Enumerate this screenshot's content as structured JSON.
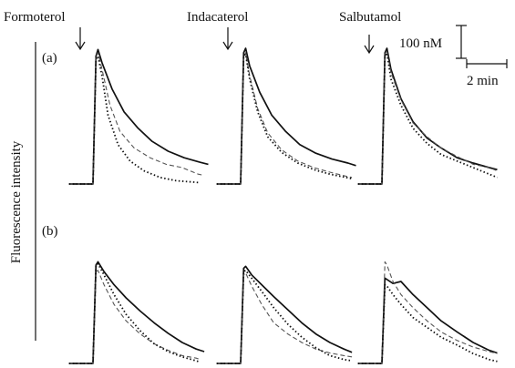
{
  "chart_data": {
    "type": "line",
    "title": "",
    "ylabel": "Fluorescence intensity",
    "columns": [
      "Formoterol",
      "Indacaterol",
      "Salbutamol"
    ],
    "rows": [
      "(a)",
      "(b)"
    ],
    "scale_bar": {
      "y_label": "100 nM",
      "y_value_nM": 100,
      "x_label": "2 min",
      "x_value_min": 2
    },
    "x_unit": "min",
    "y_unit": "nM",
    "x_range": [
      0,
      7
    ],
    "y_range": [
      0,
      240
    ],
    "line_styles": [
      {
        "style": "solid",
        "color": "#111111"
      },
      {
        "style": "dashed",
        "color": "#555555"
      },
      {
        "style": "dotted",
        "color": "#111111"
      }
    ],
    "panels": [
      {
        "row": "(a)",
        "column": "Formoterol",
        "series": [
          {
            "style": "solid",
            "x": [
              0,
              0.65,
              0.8,
              0.9,
              1.1,
              1.6,
              2.2,
              2.9,
              3.6,
              4.4,
              5.2,
              6.0,
              6.4
            ],
            "y": [
              0,
              0,
              195,
              205,
              185,
              145,
              110,
              85,
              65,
              50,
              40,
              33,
              30
            ]
          },
          {
            "style": "dashed",
            "x": [
              0,
              0.65,
              0.8,
              0.9,
              1.1,
              1.5,
              2.0,
              2.7,
              3.5,
              4.3,
              5.1,
              5.9,
              6.2
            ],
            "y": [
              0,
              0,
              195,
              200,
              175,
              120,
              80,
              55,
              40,
              30,
              25,
              15,
              13
            ]
          },
          {
            "style": "dotted",
            "x": [
              0,
              0.65,
              0.8,
              0.9,
              1.1,
              1.4,
              1.9,
              2.5,
              3.2,
              4.0,
              4.8,
              5.6,
              6.0
            ],
            "y": [
              0,
              0,
              190,
              195,
              165,
              105,
              60,
              35,
              20,
              10,
              5,
              3,
              2
            ]
          }
        ]
      },
      {
        "row": "(a)",
        "column": "Indacaterol",
        "series": [
          {
            "style": "solid",
            "x": [
              0,
              0.65,
              0.8,
              0.9,
              1.1,
              1.6,
              2.2,
              2.9,
              3.6,
              4.4,
              5.2,
              6.0,
              6.4
            ],
            "y": [
              0,
              0,
              200,
              207,
              180,
              140,
              105,
              80,
              60,
              47,
              38,
              32,
              28
            ]
          },
          {
            "style": "dashed",
            "x": [
              0,
              0.65,
              0.8,
              0.9,
              1.1,
              1.5,
              2.0,
              2.7,
              3.5,
              4.3,
              5.1,
              5.9,
              6.2
            ],
            "y": [
              0,
              0,
              195,
              200,
              165,
              115,
              78,
              52,
              35,
              25,
              18,
              12,
              10
            ]
          },
          {
            "style": "dotted",
            "x": [
              0,
              0.65,
              0.8,
              0.9,
              1.1,
              1.5,
              2.0,
              2.7,
              3.5,
              4.3,
              5.1,
              5.9,
              6.2
            ],
            "y": [
              0,
              0,
              195,
              198,
              160,
              110,
              72,
              48,
              32,
              22,
              15,
              10,
              8
            ]
          }
        ]
      },
      {
        "row": "(a)",
        "column": "Salbutamol",
        "series": [
          {
            "style": "solid",
            "x": [
              0,
              0.65,
              0.8,
              0.9,
              1.1,
              1.6,
              2.2,
              2.9,
              3.6,
              4.4,
              5.2,
              6.0,
              6.4
            ],
            "y": [
              0,
              0,
              200,
              207,
              175,
              130,
              95,
              70,
              55,
              40,
              32,
              25,
              22
            ]
          },
          {
            "style": "dashed",
            "x": [
              0,
              0.65,
              0.8,
              0.9,
              1.1,
              1.6,
              2.2,
              2.9,
              3.6,
              4.4,
              5.2,
              6.0,
              6.4
            ],
            "y": [
              0,
              0,
              198,
              203,
              170,
              128,
              93,
              72,
              55,
              42,
              30,
              25,
              20
            ]
          },
          {
            "style": "dotted",
            "x": [
              0,
              0.65,
              0.8,
              0.9,
              1.1,
              1.6,
              2.2,
              2.9,
              3.6,
              4.4,
              5.2,
              6.0,
              6.4
            ],
            "y": [
              0,
              0,
              195,
              200,
              160,
              120,
              85,
              62,
              45,
              35,
              25,
              15,
              10
            ]
          }
        ]
      },
      {
        "row": "(b)",
        "column": "Formoterol",
        "series": [
          {
            "style": "solid",
            "x": [
              0,
              0.65,
              0.8,
              0.9,
              1.2,
              1.7,
              2.3,
              3.0,
              3.7,
              4.4,
              5.1,
              5.8,
              6.2
            ],
            "y": [
              0,
              0,
              150,
              155,
              140,
              120,
              100,
              80,
              62,
              46,
              32,
              22,
              18
            ]
          },
          {
            "style": "dashed",
            "x": [
              0,
              0.65,
              0.8,
              0.9,
              1.2,
              1.7,
              2.3,
              3.0,
              3.7,
              4.4,
              5.1,
              5.8,
              6.0
            ],
            "y": [
              0,
              0,
              140,
              142,
              120,
              90,
              65,
              45,
              30,
              20,
              12,
              8,
              6
            ]
          },
          {
            "style": "dotted",
            "x": [
              0,
              0.65,
              0.8,
              0.9,
              1.2,
              1.7,
              2.3,
              3.0,
              3.7,
              4.4,
              5.1,
              5.8,
              6.0
            ],
            "y": [
              0,
              0,
              150,
              152,
              135,
              105,
              75,
              50,
              30,
              18,
              10,
              4,
              2
            ]
          }
        ]
      },
      {
        "row": "(b)",
        "column": "Indacaterol",
        "series": [
          {
            "style": "solid",
            "x": [
              0,
              0.65,
              0.8,
              0.9,
              1.2,
              1.7,
              2.3,
              3.0,
              3.7,
              4.4,
              5.1,
              5.8,
              6.2
            ],
            "y": [
              0,
              0,
              145,
              148,
              135,
              120,
              102,
              82,
              62,
              45,
              32,
              22,
              17
            ]
          },
          {
            "style": "dashed",
            "x": [
              0,
              0.65,
              0.8,
              0.9,
              1.2,
              1.7,
              2.3,
              3.0,
              3.7,
              4.4,
              5.1,
              5.8,
              6.2
            ],
            "y": [
              0,
              0,
              135,
              138,
              118,
              90,
              62,
              45,
              32,
              22,
              16,
              12,
              10
            ]
          },
          {
            "style": "dotted",
            "x": [
              0,
              0.65,
              0.8,
              0.9,
              1.2,
              1.7,
              2.3,
              3.0,
              3.7,
              4.4,
              5.1,
              5.8,
              6.2
            ],
            "y": [
              0,
              0,
              140,
              142,
              130,
              110,
              85,
              60,
              40,
              24,
              12,
              6,
              4
            ]
          }
        ]
      },
      {
        "row": "(b)",
        "column": "Salbutamol",
        "series": [
          {
            "style": "solid",
            "x": [
              0,
              0.65,
              0.8,
              0.9,
              1.2,
              1.6,
              2.2,
              2.9,
              3.6,
              4.4,
              5.2,
              6.0,
              6.4
            ],
            "y": [
              0,
              0,
              130,
              128,
              122,
              125,
              105,
              85,
              65,
              48,
              32,
              20,
              16
            ]
          },
          {
            "style": "dashed",
            "x": [
              0,
              0.65,
              0.8,
              0.9,
              1.2,
              1.6,
              2.2,
              2.9,
              3.6,
              4.4,
              5.2,
              6.0,
              6.4
            ],
            "y": [
              0,
              0,
              155,
              150,
              125,
              105,
              85,
              65,
              48,
              35,
              25,
              18,
              15
            ]
          },
          {
            "style": "dotted",
            "x": [
              0,
              0.65,
              0.8,
              0.9,
              1.2,
              1.6,
              2.2,
              2.9,
              3.6,
              4.4,
              5.2,
              6.0,
              6.4
            ],
            "y": [
              0,
              0,
              120,
              118,
              105,
              90,
              70,
              55,
              40,
              28,
              15,
              6,
              3
            ]
          }
        ]
      }
    ]
  }
}
